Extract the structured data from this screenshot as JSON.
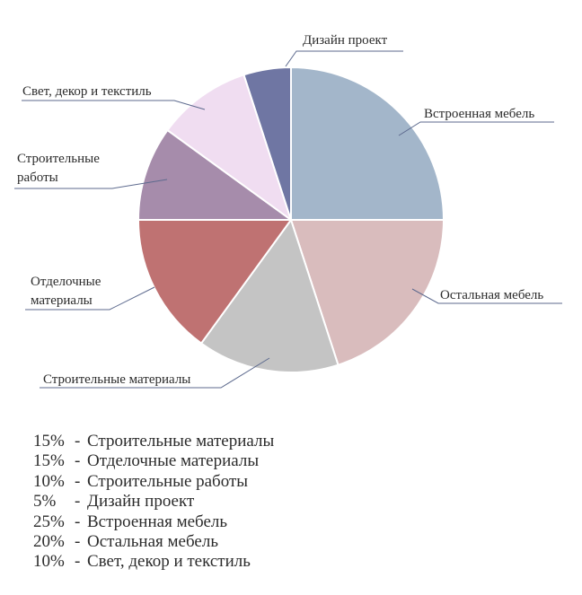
{
  "chart_data": {
    "type": "pie",
    "slices": [
      {
        "label": "Встроенная мебель",
        "value": 25,
        "color": "#a3b6ca"
      },
      {
        "label": "Остальная мебель",
        "value": 20,
        "color": "#d9bcbd"
      },
      {
        "label": "Строительные материалы",
        "value": 15,
        "color": "#c4c4c4"
      },
      {
        "label": "Отделочные материалы",
        "value": 15,
        "color": "#bf7272"
      },
      {
        "label": "Строительные работы",
        "value": 10,
        "color": "#a68cab"
      },
      {
        "label": "Свет, декор и текстиль",
        "value": 10,
        "color": "#f0ddf1"
      },
      {
        "label": "Дизайн проект",
        "value": 5,
        "color": "#6f76a3"
      }
    ]
  },
  "legend": {
    "separator": "-",
    "items": [
      {
        "percent": "15%",
        "label": "Строительные материалы"
      },
      {
        "percent": "15%",
        "label": "Отделочные материалы"
      },
      {
        "percent": "10%",
        "label": "Строительные работы"
      },
      {
        "percent": "5%",
        "label": "Дизайн проект"
      },
      {
        "percent": "25%",
        "label": "Встроенная мебель"
      },
      {
        "percent": "20%",
        "label": "Остальная мебель"
      },
      {
        "percent": "10%",
        "label": "Свет, декор и текстиль"
      }
    ]
  },
  "colors": {
    "text": "#2b2b2b",
    "leader": "#5d6a8e",
    "slice_border": "#ffffff"
  }
}
